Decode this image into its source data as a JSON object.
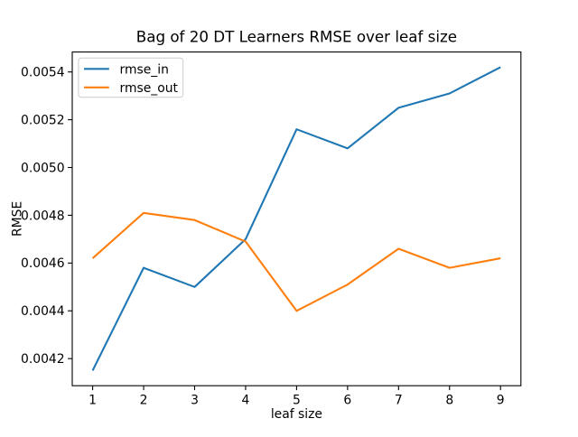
{
  "chart_data": {
    "type": "line",
    "title": "Bag of 20 DT Learners RMSE over leaf size",
    "xlabel": "leaf size",
    "ylabel": "RMSE",
    "x": [
      1,
      2,
      3,
      4,
      5,
      6,
      7,
      8,
      9
    ],
    "series": [
      {
        "name": "rmse_in",
        "color": "#1f77b4",
        "values": [
          0.00415,
          0.00458,
          0.0045,
          0.0047,
          0.00516,
          0.00508,
          0.00525,
          0.00531,
          0.00542
        ]
      },
      {
        "name": "rmse_out",
        "color": "#ff7f0e",
        "values": [
          0.00462,
          0.00481,
          0.00478,
          0.00469,
          0.0044,
          0.00451,
          0.00466,
          0.00458,
          0.00462
        ]
      }
    ],
    "xticks": [
      1,
      2,
      3,
      4,
      5,
      6,
      7,
      8,
      9
    ],
    "yticks": [
      0.0042,
      0.0044,
      0.0046,
      0.0048,
      0.005,
      0.0052,
      0.0054
    ],
    "ytick_decimals": 4,
    "xlim": [
      0.6,
      9.4
    ],
    "ylim": [
      0.0040865,
      0.0054835
    ],
    "grid": false,
    "legend": {
      "position": "upper left"
    },
    "axes_color": "#000000",
    "background": "#ffffff"
  }
}
